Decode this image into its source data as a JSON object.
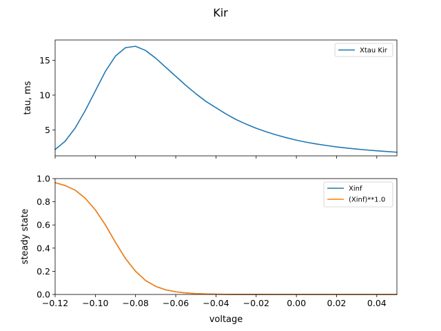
{
  "figure_title": "Kir",
  "chart_data": [
    {
      "type": "line",
      "title": "",
      "xlabel": "",
      "ylabel": "tau, ms",
      "xlim": [
        -0.12,
        0.05
      ],
      "ylim": [
        1.3,
        17.9
      ],
      "xticks": [
        -0.12,
        -0.1,
        -0.08,
        -0.06,
        -0.04,
        -0.02,
        0.0,
        0.02,
        0.04
      ],
      "yticks": [
        5,
        10,
        15
      ],
      "ytick_labels": [
        "5",
        "10",
        "15"
      ],
      "grid": false,
      "legend": "top-right",
      "series": [
        {
          "name": "Xtau Kir",
          "color": "#1f77b4",
          "x": [
            -0.12,
            -0.115,
            -0.11,
            -0.105,
            -0.1,
            -0.095,
            -0.09,
            -0.085,
            -0.08,
            -0.075,
            -0.07,
            -0.065,
            -0.06,
            -0.055,
            -0.05,
            -0.045,
            -0.04,
            -0.035,
            -0.03,
            -0.025,
            -0.02,
            -0.015,
            -0.01,
            -0.005,
            0.0,
            0.005,
            0.01,
            0.015,
            0.02,
            0.025,
            0.03,
            0.035,
            0.04,
            0.045,
            0.05
          ],
          "y": [
            2.2,
            3.4,
            5.3,
            7.8,
            10.6,
            13.4,
            15.6,
            16.8,
            17.0,
            16.4,
            15.3,
            14.0,
            12.7,
            11.4,
            10.2,
            9.1,
            8.2,
            7.3,
            6.5,
            5.85,
            5.25,
            4.75,
            4.3,
            3.9,
            3.55,
            3.25,
            3.0,
            2.78,
            2.58,
            2.42,
            2.27,
            2.14,
            2.02,
            1.92,
            1.82
          ]
        }
      ]
    },
    {
      "type": "line",
      "title": "",
      "xlabel": "voltage",
      "ylabel": "steady state",
      "xlim": [
        -0.12,
        0.05
      ],
      "ylim": [
        0.0,
        1.0
      ],
      "xticks": [
        -0.12,
        -0.1,
        -0.08,
        -0.06,
        -0.04,
        -0.02,
        0.0,
        0.02,
        0.04
      ],
      "xtick_labels": [
        "−0.12",
        "−0.10",
        "−0.08",
        "−0.06",
        "−0.04",
        "−0.02",
        "0.00",
        "0.02",
        "0.04"
      ],
      "yticks": [
        0.0,
        0.2,
        0.4,
        0.6,
        0.8,
        1.0
      ],
      "ytick_labels": [
        "0.0",
        "0.2",
        "0.4",
        "0.6",
        "0.8",
        "1.0"
      ],
      "grid": false,
      "legend": "top-right",
      "series": [
        {
          "name": "Xinf",
          "color": "#1f77b4",
          "x": [
            -0.12,
            -0.115,
            -0.11,
            -0.105,
            -0.1,
            -0.095,
            -0.09,
            -0.085,
            -0.08,
            -0.075,
            -0.07,
            -0.065,
            -0.06,
            -0.055,
            -0.05,
            -0.045,
            -0.04,
            -0.035,
            -0.03,
            -0.02,
            -0.01,
            0.0,
            0.01,
            0.02,
            0.03,
            0.04,
            0.05
          ],
          "y": [
            0.965,
            0.94,
            0.9,
            0.83,
            0.73,
            0.6,
            0.45,
            0.31,
            0.2,
            0.12,
            0.07,
            0.04,
            0.023,
            0.013,
            0.007,
            0.004,
            0.002,
            0.001,
            0.0005,
            0.0001,
            0.0,
            0.0,
            0.0,
            0.0,
            0.0,
            0.0,
            0.0
          ]
        },
        {
          "name": "(Xinf)**1.0",
          "color": "#ff7f0e",
          "x": [
            -0.12,
            -0.115,
            -0.11,
            -0.105,
            -0.1,
            -0.095,
            -0.09,
            -0.085,
            -0.08,
            -0.075,
            -0.07,
            -0.065,
            -0.06,
            -0.055,
            -0.05,
            -0.045,
            -0.04,
            -0.035,
            -0.03,
            -0.02,
            -0.01,
            0.0,
            0.01,
            0.02,
            0.03,
            0.04,
            0.05
          ],
          "y": [
            0.965,
            0.94,
            0.9,
            0.83,
            0.73,
            0.6,
            0.45,
            0.31,
            0.2,
            0.12,
            0.07,
            0.04,
            0.023,
            0.013,
            0.007,
            0.004,
            0.002,
            0.001,
            0.0005,
            0.0001,
            0.0,
            0.0,
            0.0,
            0.0,
            0.0,
            0.0,
            0.0
          ]
        }
      ]
    }
  ]
}
